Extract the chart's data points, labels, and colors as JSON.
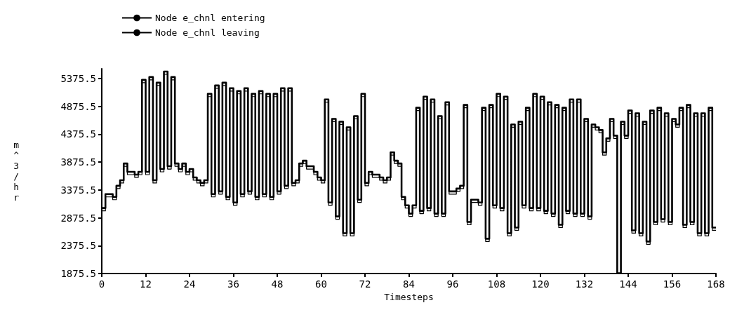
{
  "chart_data": {
    "type": "step",
    "xlabel": "Timesteps",
    "ylabel": "m^3/hr",
    "x": [
      0,
      1,
      2,
      3,
      4,
      5,
      6,
      7,
      8,
      9,
      10,
      11,
      12,
      13,
      14,
      15,
      16,
      17,
      18,
      19,
      20,
      21,
      22,
      23,
      24,
      25,
      26,
      27,
      28,
      29,
      30,
      31,
      32,
      33,
      34,
      35,
      36,
      37,
      38,
      39,
      40,
      41,
      42,
      43,
      44,
      45,
      46,
      47,
      48,
      49,
      50,
      51,
      52,
      53,
      54,
      55,
      56,
      57,
      58,
      59,
      60,
      61,
      62,
      63,
      64,
      65,
      66,
      67,
      68,
      69,
      70,
      71,
      72,
      73,
      74,
      75,
      76,
      77,
      78,
      79,
      80,
      81,
      82,
      83,
      84,
      85,
      86,
      87,
      88,
      89,
      90,
      91,
      92,
      93,
      94,
      95,
      96,
      97,
      98,
      99,
      100,
      101,
      102,
      103,
      104,
      105,
      106,
      107,
      108,
      109,
      110,
      111,
      112,
      113,
      114,
      115,
      116,
      117,
      118,
      119,
      120,
      121,
      122,
      123,
      124,
      125,
      126,
      127,
      128,
      129,
      130,
      131,
      132,
      133,
      134,
      135,
      136,
      137,
      138,
      139,
      140,
      141,
      142,
      143,
      144,
      145,
      146,
      147,
      148,
      149,
      150,
      151,
      152,
      153,
      154,
      155,
      156,
      157,
      158,
      159,
      160,
      161,
      162,
      163,
      164,
      165,
      166,
      167,
      168
    ],
    "series": [
      {
        "name": "Node e_chnl entering",
        "color": "#000000",
        "values": [
          3050,
          3300,
          3300,
          3250,
          3450,
          3550,
          3850,
          3700,
          3700,
          3650,
          3700,
          5350,
          3700,
          5400,
          3550,
          5300,
          3750,
          5500,
          3800,
          5400,
          3850,
          3750,
          3850,
          3700,
          3750,
          3600,
          3550,
          3500,
          3550,
          5100,
          3300,
          5250,
          3350,
          5300,
          3250,
          5200,
          3150,
          5150,
          3300,
          5200,
          3350,
          5100,
          3250,
          5150,
          3300,
          5100,
          3250,
          5100,
          3350,
          5200,
          3450,
          5200,
          3500,
          3550,
          3850,
          3900,
          3800,
          3800,
          3700,
          3600,
          3550,
          5000,
          3150,
          4650,
          2900,
          4600,
          2600,
          4500,
          2600,
          4700,
          3200,
          5100,
          3500,
          3700,
          3650,
          3650,
          3600,
          3550,
          3600,
          4050,
          3900,
          3850,
          3250,
          3100,
          2950,
          3100,
          4850,
          3000,
          5050,
          3050,
          5000,
          2950,
          4700,
          2950,
          4950,
          3350,
          3350,
          3400,
          3450,
          4900,
          2800,
          3200,
          3200,
          3150,
          4850,
          2500,
          4900,
          3100,
          5100,
          3050,
          5050,
          2600,
          4550,
          2700,
          4600,
          3100,
          4850,
          3050,
          5100,
          3050,
          5050,
          3000,
          4950,
          2950,
          4900,
          2750,
          4850,
          3000,
          5000,
          2950,
          5000,
          2950,
          4650,
          2900,
          4550,
          4500,
          4450,
          4050,
          4300,
          4650,
          4350,
          1880,
          4600,
          4350,
          4800,
          2650,
          4750,
          2600,
          4600,
          2450,
          4800,
          2800,
          4850,
          2850,
          4750,
          2800,
          4650,
          4550,
          4850,
          2750,
          4900,
          2800,
          4750,
          2600,
          4750,
          2600,
          4850,
          2700,
          2700
        ]
      },
      {
        "name": "Node e_chnl leaving",
        "color": "#000000",
        "values": [
          3000,
          3250,
          3250,
          3200,
          3400,
          3500,
          3800,
          3650,
          3650,
          3600,
          3650,
          5300,
          3650,
          5350,
          3500,
          5250,
          3700,
          5450,
          3750,
          5350,
          3800,
          3700,
          3800,
          3650,
          3700,
          3550,
          3500,
          3450,
          3500,
          5050,
          3250,
          5200,
          3300,
          5250,
          3200,
          5150,
          3100,
          5100,
          3250,
          5150,
          3300,
          5050,
          3200,
          5100,
          3250,
          5050,
          3200,
          5050,
          3300,
          5150,
          3400,
          5150,
          3450,
          3500,
          3800,
          3850,
          3750,
          3750,
          3650,
          3550,
          3500,
          4950,
          3100,
          4600,
          2850,
          4550,
          2550,
          4450,
          2550,
          4650,
          3150,
          5050,
          3450,
          3650,
          3600,
          3600,
          3550,
          3500,
          3550,
          4000,
          3850,
          3800,
          3200,
          3050,
          2900,
          3050,
          4800,
          2950,
          5000,
          3000,
          4950,
          2900,
          4650,
          2900,
          4900,
          3300,
          3300,
          3350,
          3400,
          4850,
          2750,
          3150,
          3150,
          3100,
          4800,
          2450,
          4850,
          3050,
          5050,
          3000,
          5000,
          2550,
          4500,
          2650,
          4550,
          3050,
          4800,
          3000,
          5050,
          3000,
          5000,
          2950,
          4900,
          2900,
          4850,
          2700,
          4800,
          2950,
          4950,
          2900,
          4950,
          2900,
          4600,
          2850,
          4500,
          4450,
          4400,
          4000,
          4250,
          4600,
          4300,
          1880,
          4550,
          4300,
          4750,
          2600,
          4700,
          2550,
          4550,
          2400,
          4750,
          2750,
          4800,
          2800,
          4700,
          2750,
          4600,
          4500,
          4800,
          2700,
          4850,
          2750,
          4700,
          2550,
          4700,
          2550,
          4800,
          2650,
          2650
        ]
      }
    ],
    "xlim": [
      0,
      168
    ],
    "xticks": [
      0,
      12,
      24,
      36,
      48,
      60,
      72,
      84,
      96,
      108,
      120,
      132,
      144,
      156,
      168
    ],
    "ylim": [
      1875.5,
      5550
    ],
    "yticks": [
      1875.5,
      2375.5,
      2875.5,
      3375.5,
      3875.5,
      4375.5,
      4875.5,
      5375.5
    ],
    "legend": "top left",
    "grid": false,
    "marker": "none",
    "line_style": "solid"
  }
}
